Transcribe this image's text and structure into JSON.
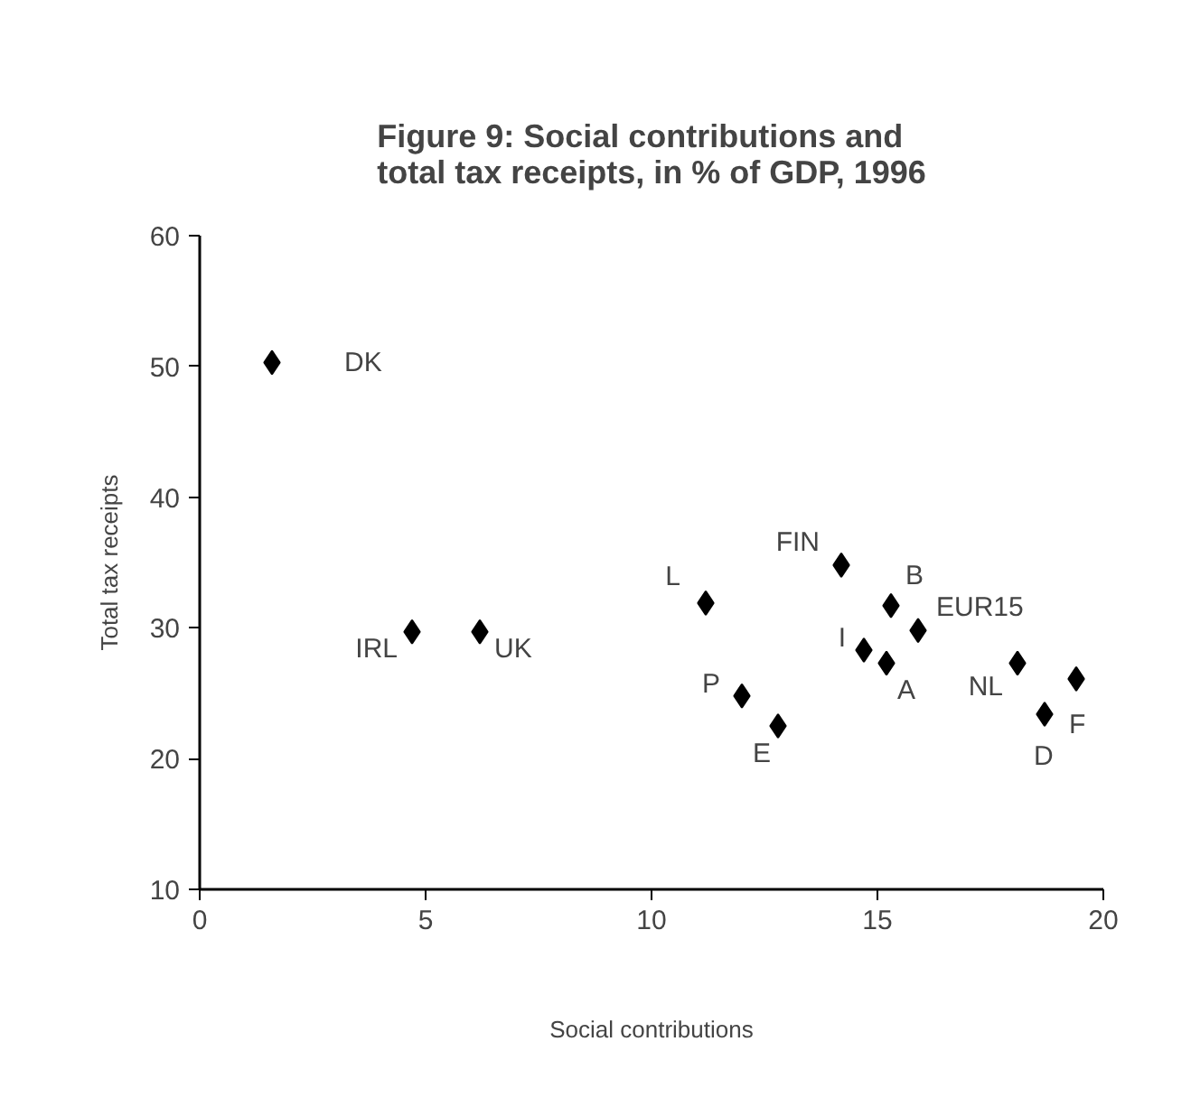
{
  "chart_data": {
    "type": "scatter",
    "title": "Figure 9: Social contributions and\ntotal tax receipts, in % of GDP, 1996",
    "xlabel": "Social contributions",
    "ylabel": "Total tax receipts",
    "x": [
      1.6,
      4.7,
      6.2,
      11.2,
      14.2,
      15.3,
      15.9,
      14.7,
      15.2,
      12.0,
      12.8,
      18.1,
      18.7,
      19.4
    ],
    "values": [
      50.3,
      29.7,
      29.7,
      31.9,
      34.8,
      31.7,
      29.8,
      28.3,
      27.3,
      24.8,
      22.5,
      27.3,
      23.4,
      26.1
    ],
    "color": "#000000",
    "marker": "diamond",
    "xlim": [
      0,
      20
    ],
    "ylim": [
      10,
      60
    ],
    "xticks": [
      0,
      5,
      10,
      15,
      20
    ],
    "yticks": [
      10,
      20,
      30,
      40,
      50,
      60
    ],
    "annotations": [
      {
        "text": "DK",
        "x": 1.6,
        "y": 50.3
      },
      {
        "text": "IRL",
        "x": 4.7,
        "y": 29.7
      },
      {
        "text": "UK",
        "x": 6.2,
        "y": 29.7
      },
      {
        "text": "L",
        "x": 11.2,
        "y": 31.9
      },
      {
        "text": "FIN",
        "x": 14.2,
        "y": 34.8
      },
      {
        "text": "B",
        "x": 15.3,
        "y": 31.7
      },
      {
        "text": "EUR15",
        "x": 15.9,
        "y": 29.8
      },
      {
        "text": "I",
        "x": 14.7,
        "y": 28.3
      },
      {
        "text": "A",
        "x": 15.2,
        "y": 27.3
      },
      {
        "text": "P",
        "x": 12.0,
        "y": 24.8
      },
      {
        "text": "E",
        "x": 12.8,
        "y": 22.5
      },
      {
        "text": "NL",
        "x": 18.1,
        "y": 27.3
      },
      {
        "text": "D",
        "x": 18.7,
        "y": 23.4
      },
      {
        "text": "F",
        "x": 19.4,
        "y": 26.1
      }
    ],
    "grid": false
  }
}
